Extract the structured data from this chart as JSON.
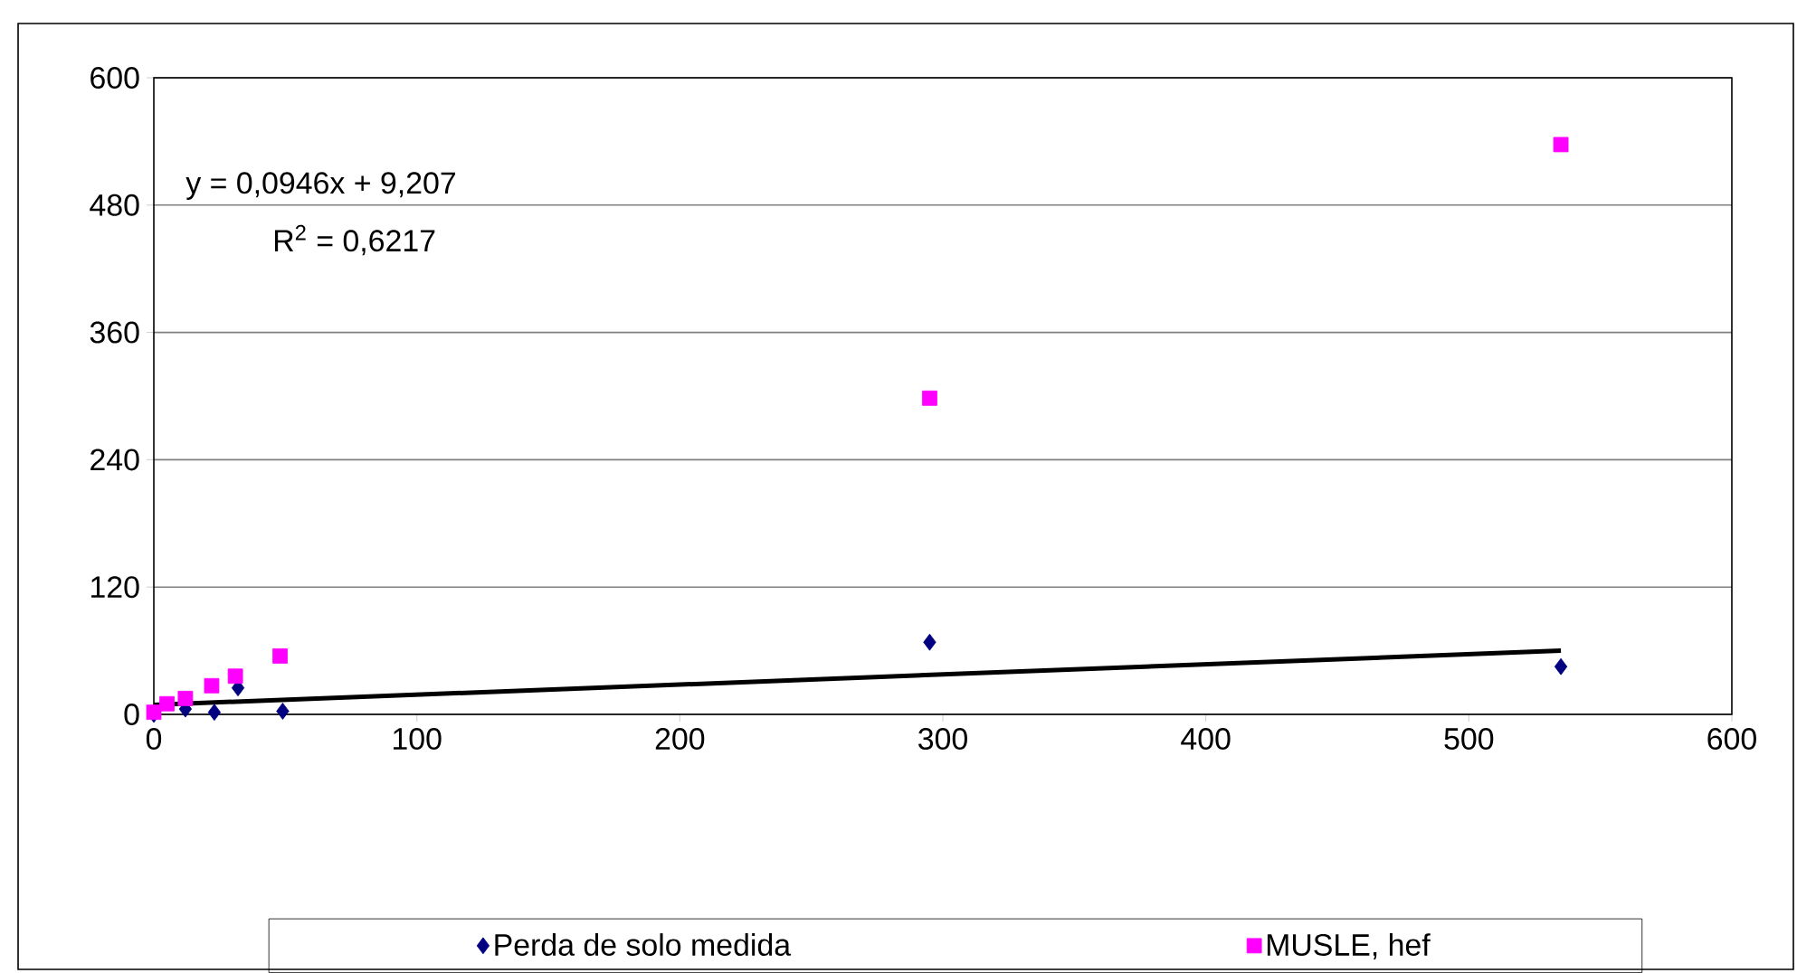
{
  "chart_data": {
    "type": "scatter",
    "xlim": [
      0,
      600
    ],
    "ylim": [
      0,
      600
    ],
    "xticks": [
      0,
      100,
      200,
      300,
      400,
      500,
      600
    ],
    "yticks": [
      0,
      120,
      240,
      360,
      480,
      600
    ],
    "grid": "y",
    "legend": "bottom",
    "annotations": [
      "y = 0,0946x + 9,207",
      "R$^{2}$ = 0,6217"
    ],
    "series": [
      {
        "name": "Perda de solo medida",
        "color": "#000080",
        "marker": "diamond",
        "x": [
          0,
          12,
          23,
          32,
          49,
          295,
          535
        ],
        "values": [
          0,
          5,
          2,
          25,
          3,
          68,
          45
        ]
      },
      {
        "name": "MUSLE, hef",
        "color": "#ff00ff",
        "marker": "square",
        "x": [
          0,
          5,
          10,
          12,
          22,
          31,
          48,
          295,
          535
        ],
        "values": [
          2,
          10,
          null,
          15,
          27,
          36,
          55,
          298,
          537
        ]
      },
      {
        "type": "line",
        "color": "#000000",
        "marker": "none",
        "line_style": "solid",
        "x": [
          0,
          535
        ],
        "values": [
          9,
          60
        ]
      }
    ]
  }
}
